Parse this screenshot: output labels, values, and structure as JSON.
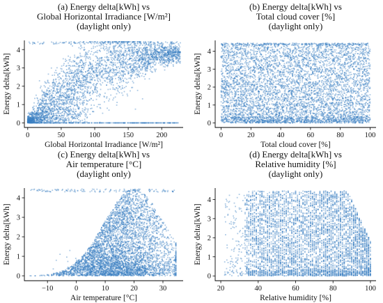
{
  "chart_data": [
    {
      "type": "scatter",
      "title": [
        "(a) Energy delta[kWh] vs",
        "Global Horizontal Irradiance [W/m²]",
        "(daylight only)"
      ],
      "xlabel": "Global Horizontal Irradiance [W/m²]",
      "ylabel": "Energy delta[kWh]",
      "xlim": [
        -5,
        232
      ],
      "ylim": [
        -0.25,
        4.5
      ],
      "xticks": [
        0,
        50,
        100,
        150,
        200
      ],
      "yticks": [
        0,
        1,
        2,
        3,
        4
      ],
      "color": "#3a7fc0",
      "grid": false,
      "pattern": "increasing",
      "series": [
        {
          "density_points": [
            [
              0,
              0.0
            ],
            [
              10,
              0.3
            ],
            [
              20,
              0.7
            ],
            [
              30,
              1.0
            ],
            [
              50,
              1.6
            ],
            [
              75,
              2.3
            ],
            [
              100,
              2.8
            ],
            [
              125,
              3.2
            ],
            [
              150,
              3.5
            ],
            [
              175,
              3.7
            ],
            [
              200,
              3.9
            ],
            [
              225,
              4.0
            ]
          ]
        }
      ]
    },
    {
      "type": "scatter",
      "title": [
        "(b) Energy delta[kWh] vs",
        "Total cloud cover [%]",
        "(daylight only)"
      ],
      "xlabel": "Total cloud cover [%]",
      "ylabel": "Energy delta[kWh]",
      "xlim": [
        -4,
        104
      ],
      "ylim": [
        -0.25,
        4.6
      ],
      "xticks": [
        0,
        20,
        40,
        60,
        80,
        100
      ],
      "yticks": [
        0,
        1,
        2,
        3,
        4
      ],
      "color": "#3a7fc0",
      "grid": false,
      "pattern": "uniform",
      "series": [
        {
          "density_points": [
            [
              0,
              0.0
            ],
            [
              0,
              4.4
            ],
            [
              20,
              2.0
            ],
            [
              50,
              1.5
            ],
            [
              80,
              1.0
            ],
            [
              100,
              0.2
            ],
            [
              100,
              4.4
            ]
          ]
        }
      ]
    },
    {
      "type": "scatter",
      "title": [
        "(c) Energy delta[kWh] vs",
        "Air temperature [°C]",
        "(daylight only)"
      ],
      "xlabel": "Air temperature [°C]",
      "ylabel": "Energy delta[kWh]",
      "xlim": [
        -18,
        37
      ],
      "ylim": [
        -0.25,
        4.5
      ],
      "xticks": [
        -10,
        0,
        10,
        20,
        30
      ],
      "yticks": [
        0,
        1,
        2,
        3,
        4
      ],
      "color": "#3a7fc0",
      "grid": false,
      "pattern": "bell",
      "series": [
        {
          "density_points": [
            [
              -15,
              0.2
            ],
            [
              -5,
              0.8
            ],
            [
              0,
              1.5
            ],
            [
              10,
              2.2
            ],
            [
              18,
              2.8
            ],
            [
              25,
              3.0
            ],
            [
              32,
              2.0
            ],
            [
              35,
              0.5
            ]
          ]
        }
      ]
    },
    {
      "type": "scatter",
      "title": [
        "(d) Energy delta[kWh] vs",
        "Relative humidity [%]",
        "(daylight only)"
      ],
      "xlabel": "Relative humidity [%]",
      "ylabel": "Energy delta[kWh]",
      "xlim": [
        17,
        103
      ],
      "ylim": [
        -0.25,
        4.6
      ],
      "xticks": [
        20,
        40,
        60,
        80,
        100
      ],
      "yticks": [
        0,
        1,
        2,
        3,
        4
      ],
      "color": "#3a7fc0",
      "grid": false,
      "pattern": "humidity",
      "series": [
        {
          "density_points": [
            [
              25,
              0.5
            ],
            [
              35,
              3.0
            ],
            [
              50,
              2.0
            ],
            [
              70,
              1.8
            ],
            [
              90,
              1.0
            ],
            [
              100,
              0.2
            ]
          ]
        }
      ]
    }
  ]
}
